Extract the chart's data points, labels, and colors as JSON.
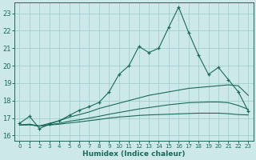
{
  "title": "",
  "xlabel": "Humidex (Indice chaleur)",
  "bg_color": "#cce8e8",
  "grid_color": "#99cccc",
  "line_color": "#1a6b5a",
  "xlim": [
    -0.5,
    23.5
  ],
  "ylim": [
    15.7,
    23.6
  ],
  "yticks": [
    16,
    17,
    18,
    19,
    20,
    21,
    22,
    23
  ],
  "xticks": [
    0,
    1,
    2,
    3,
    4,
    5,
    6,
    7,
    8,
    9,
    10,
    11,
    12,
    13,
    14,
    15,
    16,
    17,
    18,
    19,
    20,
    21,
    22,
    23
  ],
  "line1_x": [
    0,
    1,
    2,
    3,
    4,
    5,
    6,
    7,
    8,
    9,
    10,
    11,
    12,
    13,
    14,
    15,
    16,
    17,
    18,
    19,
    20,
    21,
    22,
    23
  ],
  "line1_y": [
    16.7,
    17.1,
    16.4,
    16.65,
    16.85,
    17.15,
    17.45,
    17.65,
    17.9,
    18.5,
    19.5,
    20.0,
    21.1,
    20.75,
    21.0,
    22.2,
    23.35,
    21.9,
    20.6,
    19.5,
    19.9,
    19.2,
    18.5,
    17.4
  ],
  "line2_x": [
    0,
    1,
    2,
    3,
    4,
    5,
    6,
    7,
    8,
    9,
    10,
    11,
    12,
    13,
    14,
    15,
    16,
    17,
    18,
    19,
    20,
    21,
    22,
    23
  ],
  "line2_y": [
    16.6,
    16.65,
    16.55,
    16.7,
    16.85,
    17.05,
    17.2,
    17.35,
    17.55,
    17.7,
    17.85,
    18.0,
    18.15,
    18.3,
    18.4,
    18.5,
    18.6,
    18.7,
    18.75,
    18.8,
    18.85,
    18.9,
    18.85,
    18.3
  ],
  "line3_x": [
    0,
    1,
    2,
    3,
    4,
    5,
    6,
    7,
    8,
    9,
    10,
    11,
    12,
    13,
    14,
    15,
    16,
    17,
    18,
    19,
    20,
    21,
    22,
    23
  ],
  "line3_y": [
    16.6,
    16.62,
    16.54,
    16.62,
    16.7,
    16.82,
    16.9,
    17.0,
    17.1,
    17.22,
    17.32,
    17.42,
    17.52,
    17.6,
    17.68,
    17.76,
    17.82,
    17.88,
    17.9,
    17.92,
    17.92,
    17.88,
    17.72,
    17.5
  ],
  "line4_x": [
    0,
    1,
    2,
    3,
    4,
    5,
    6,
    7,
    8,
    9,
    10,
    11,
    12,
    13,
    14,
    15,
    16,
    17,
    18,
    19,
    20,
    21,
    22,
    23
  ],
  "line4_y": [
    16.6,
    16.62,
    16.54,
    16.6,
    16.65,
    16.72,
    16.78,
    16.85,
    16.92,
    17.0,
    17.06,
    17.1,
    17.15,
    17.18,
    17.2,
    17.22,
    17.24,
    17.26,
    17.28,
    17.28,
    17.28,
    17.25,
    17.2,
    17.18
  ]
}
